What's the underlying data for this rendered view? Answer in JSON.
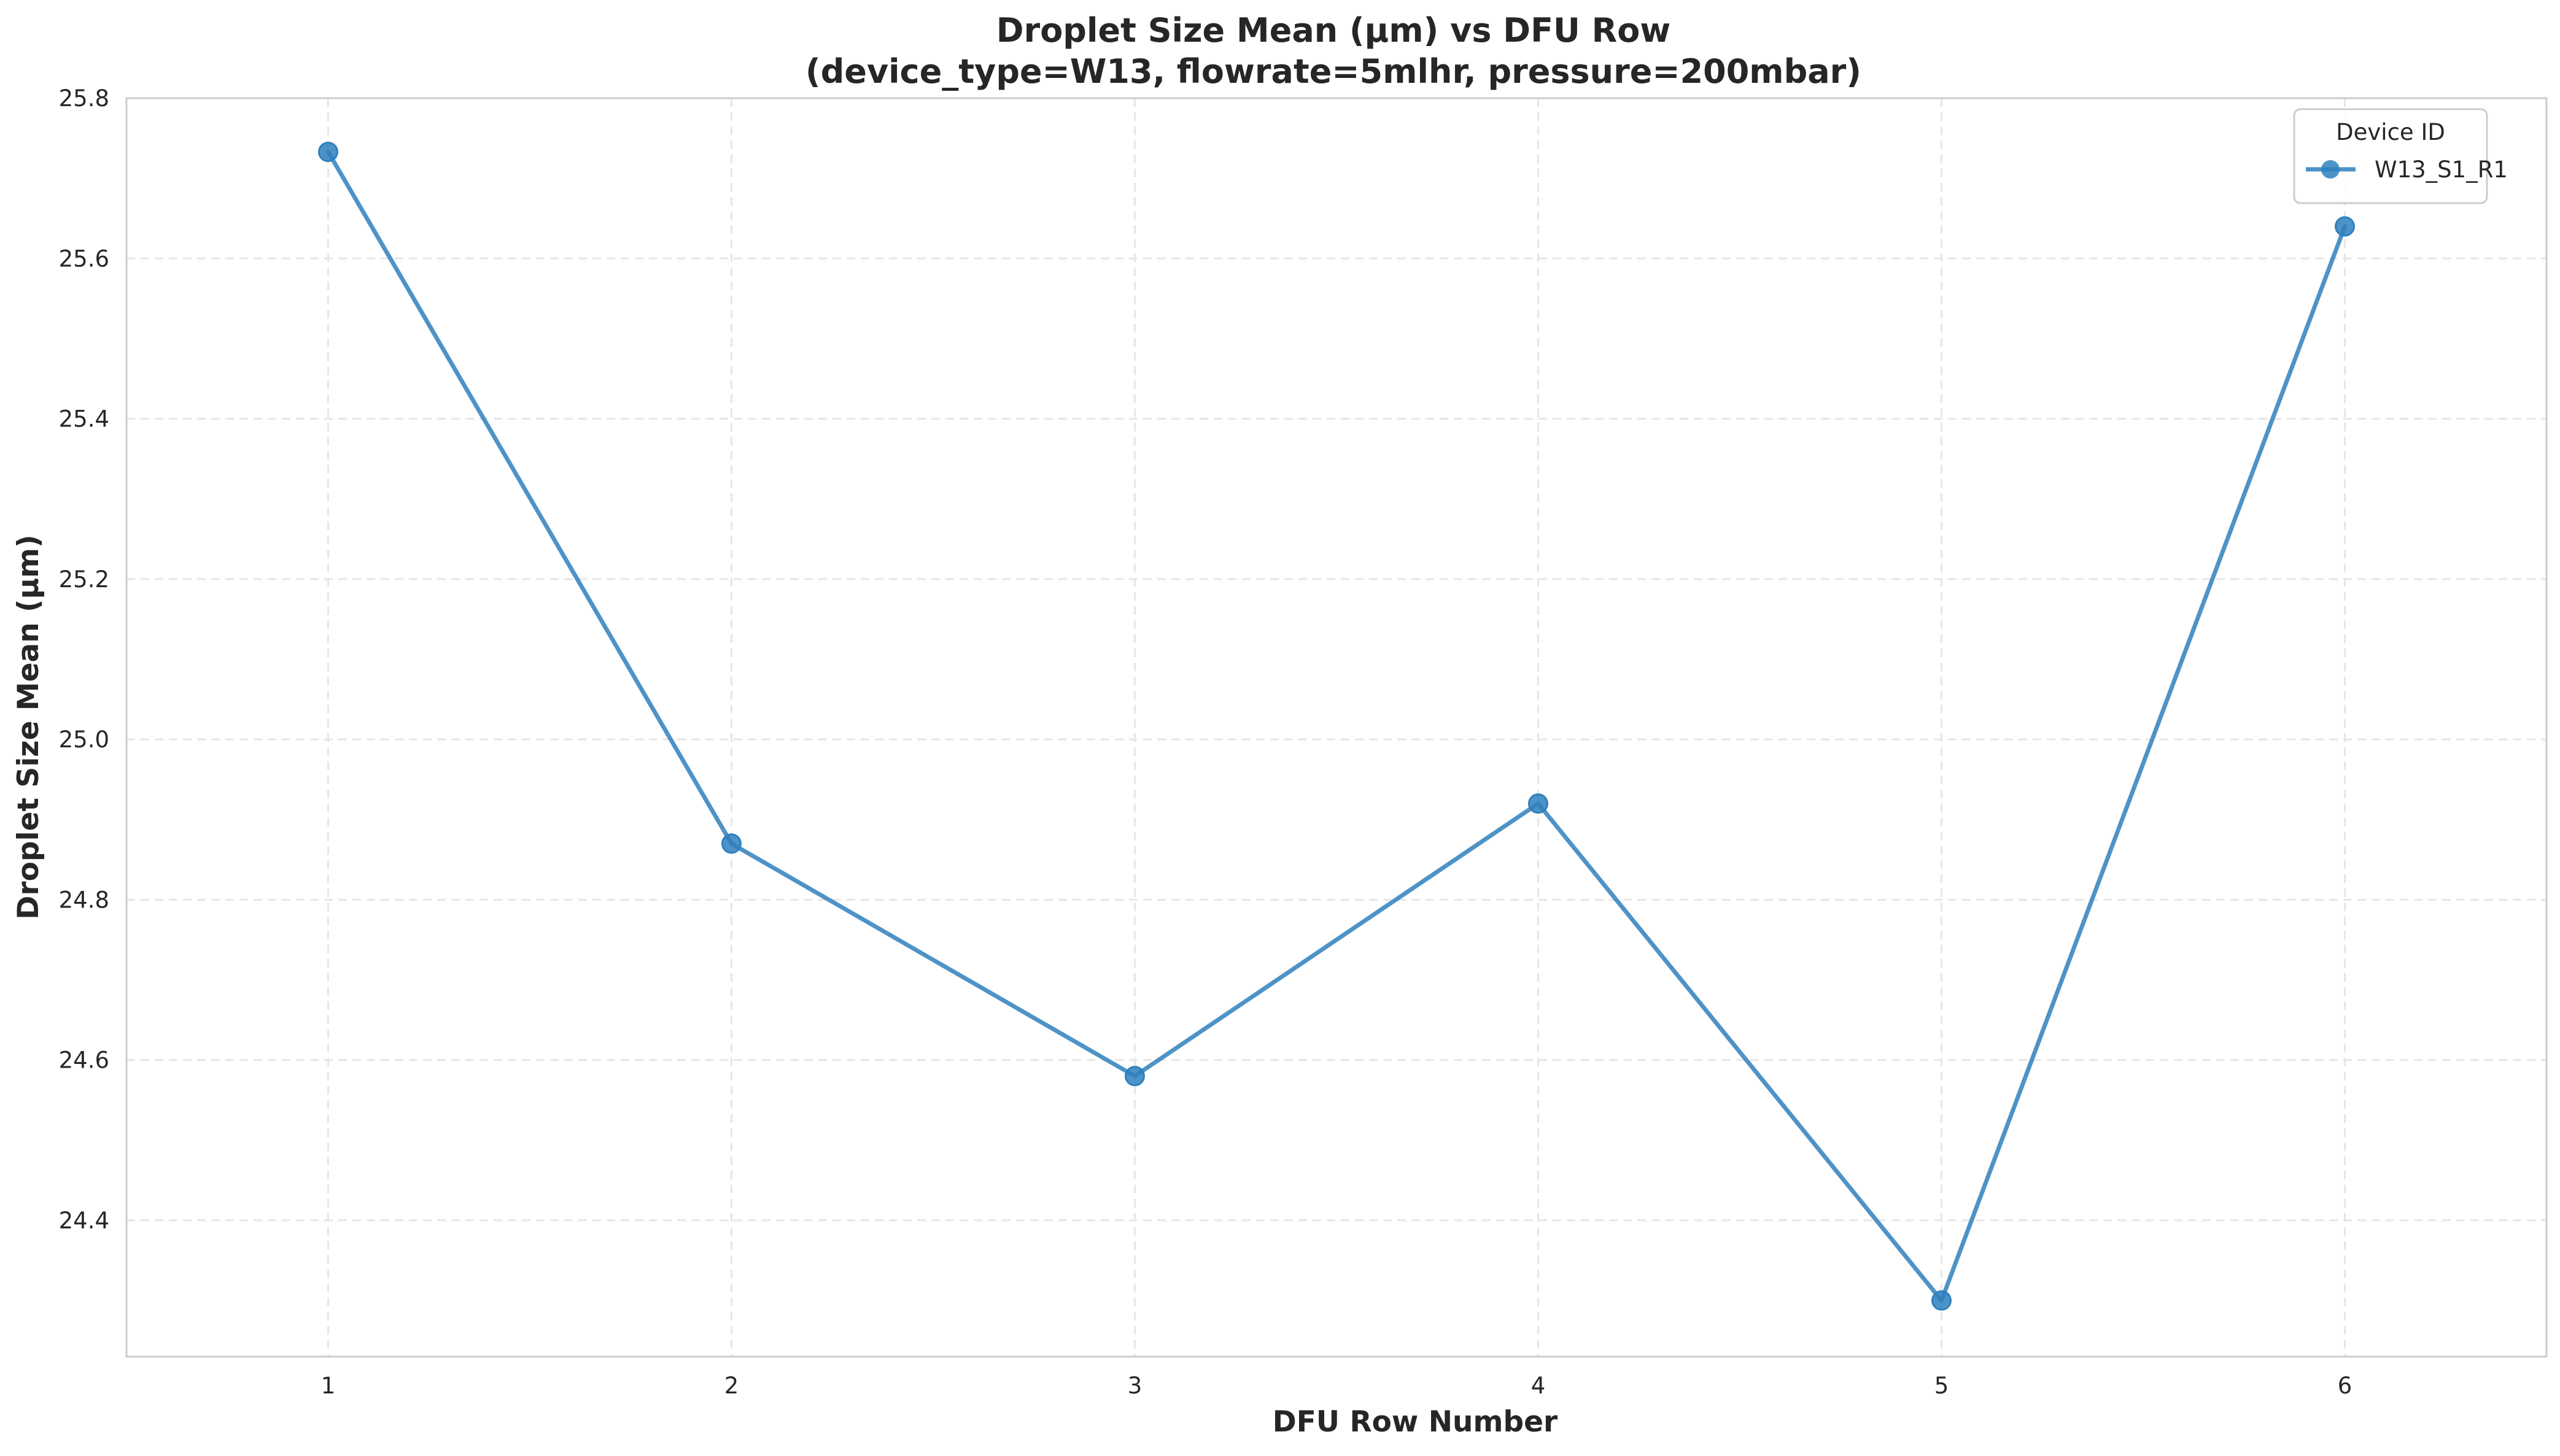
{
  "chart_data": {
    "type": "line",
    "title": "Droplet Size Mean (μm) vs DFU Row",
    "subtitle": "(device_type=W13, flowrate=5mlhr, pressure=200mbar)",
    "xlabel": "DFU Row Number",
    "ylabel": "Droplet Size Mean (μm)",
    "xlim": [
      0.5,
      6.5
    ],
    "ylim": [
      24.23,
      25.8
    ],
    "x_ticks": [
      "1",
      "2",
      "3",
      "4",
      "5",
      "6"
    ],
    "y_ticks": [
      "24.4",
      "24.6",
      "24.8",
      "25.0",
      "25.2",
      "25.4",
      "25.6",
      "25.8"
    ],
    "grid": true,
    "legend": {
      "title": "Device ID",
      "placement": "top-right"
    },
    "series": [
      {
        "name": "W13_S1_R1",
        "color": "#2f80bd",
        "marker": "circle",
        "x": [
          1,
          2,
          3,
          4,
          5,
          6
        ],
        "y": [
          25.733,
          24.87,
          24.58,
          24.92,
          24.3,
          25.64
        ]
      }
    ]
  }
}
